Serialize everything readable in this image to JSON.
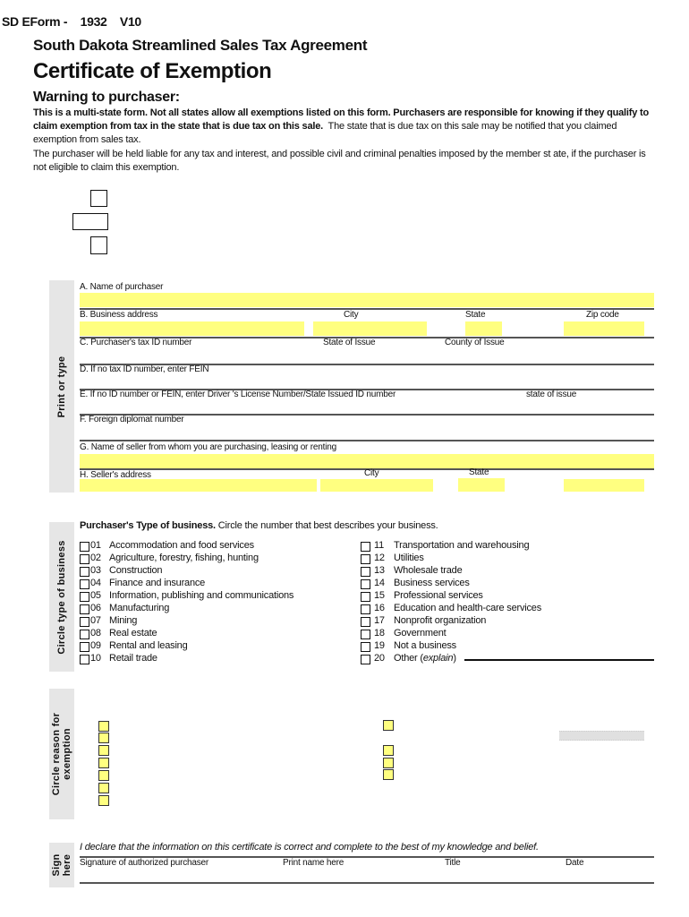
{
  "header": {
    "form_id": "SD EForm -",
    "form_number": "1932",
    "version": "V10"
  },
  "subtitle": "South Dakota Streamlined Sales Tax Agreement",
  "title": "Certificate of Exemption",
  "warning": {
    "heading": "Warning to purchaser:",
    "bold_text": "This is a multi-state form. Not all states allow all exemptions listed on this form. Purchasers are responsible for knowing if they qualify to claim exemption from tax in the state that is due tax on this sale.",
    "normal_text": "The state that is due tax on this sale may be notified that you claimed exemption from sales tax.",
    "liability": "The purchaser will be held liable for any tax and interest, and possible civil and criminal penalties imposed by the member st ate, if the purchaser is not eligible to claim this exemption."
  },
  "print_section": {
    "side_label": "Print or type",
    "a_name": "A. Name of purchaser",
    "b_address": "B. Business address",
    "b_city": "City",
    "b_state": "State",
    "b_zip": "Zip code",
    "c_taxid": "C. Purchaser's tax ID number",
    "c_state": "State of Issue",
    "c_county": "County of Issue",
    "d_fein": "D. If no tax ID number, enter FEIN",
    "e_license": "E. If no ID number or FEIN, enter Driver 's License Number/State Issued ID number",
    "e_state": "state of issue",
    "f_diplomat": "F. Foreign diplomat number",
    "g_seller": "G. Name of seller from whom you are purchasing, leasing or renting",
    "h_address": "H. Seller's address",
    "h_city": "City",
    "h_state": "State"
  },
  "business": {
    "side_label": "Circle type of business",
    "heading_bold": "Purchaser's Type of business.",
    "heading_rest": "Circle the number that best describes your business.",
    "left": [
      {
        "num": "01",
        "label": "Accommodation and food services"
      },
      {
        "num": "02",
        "label": "Agriculture, forestry, fishing, hunting"
      },
      {
        "num": "03",
        "label": "Construction"
      },
      {
        "num": "04",
        "label": "Finance and insurance"
      },
      {
        "num": "05",
        "label": "Information, publishing and communications"
      },
      {
        "num": "06",
        "label": "Manufacturing"
      },
      {
        "num": "07",
        "label": "Mining"
      },
      {
        "num": "08",
        "label": "Real estate"
      },
      {
        "num": "09",
        "label": "Rental and leasing"
      },
      {
        "num": "10",
        "label": "Retail trade"
      }
    ],
    "right": [
      {
        "num": "11",
        "label": "Transportation and warehousing"
      },
      {
        "num": "12",
        "label": "Utilities"
      },
      {
        "num": "13",
        "label": "Wholesale trade"
      },
      {
        "num": "14",
        "label": "Business services"
      },
      {
        "num": "15",
        "label": "Professional services"
      },
      {
        "num": "16",
        "label": "Education and health-care services"
      },
      {
        "num": "17",
        "label": "Nonprofit organization"
      },
      {
        "num": "18",
        "label": "Government"
      },
      {
        "num": "19",
        "label": "Not a business"
      },
      {
        "num": "20",
        "label": "Other (",
        "italic": "explain",
        "after": ")"
      }
    ]
  },
  "exemption": {
    "side_label_1": "Circle reason for",
    "side_label_2": "exemption"
  },
  "sign": {
    "side_label_1": "Sign",
    "side_label_2": "here",
    "declaration": "I declare that the information on this certificate is correct and complete to the best of my knowledge and belief.",
    "signature": "Signature of authorized purchaser",
    "print_name": "Print name here",
    "title": "Title",
    "date": "Date"
  },
  "colors": {
    "field_fill": "#ffff80",
    "side_bar": "#e6e6e6"
  }
}
